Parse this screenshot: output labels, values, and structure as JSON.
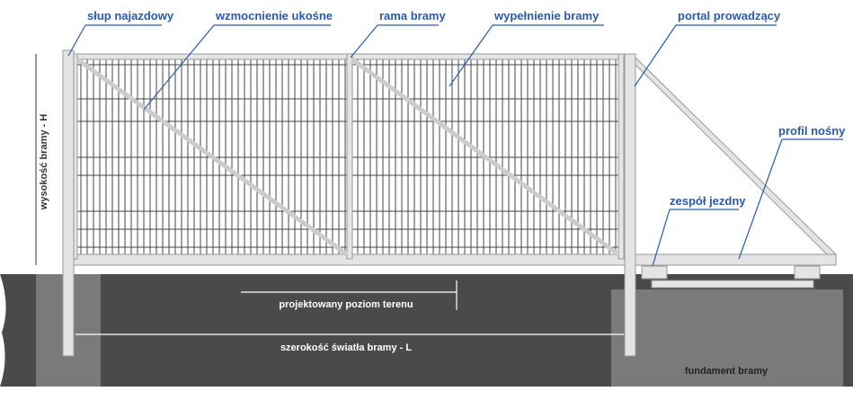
{
  "callouts": [
    "słup najazdowy",
    "wzmocnienie ukośne",
    "rama bramy",
    "wypełnienie bramy",
    "portal prowadzący",
    "profil nośny",
    "zespół jezdny"
  ],
  "dimensions": {
    "height": "wysokość bramy - H",
    "ground_level": "projektowany poziom terenu",
    "width": "szerokość światła bramy - L"
  },
  "foundation": "fundament bramy"
}
